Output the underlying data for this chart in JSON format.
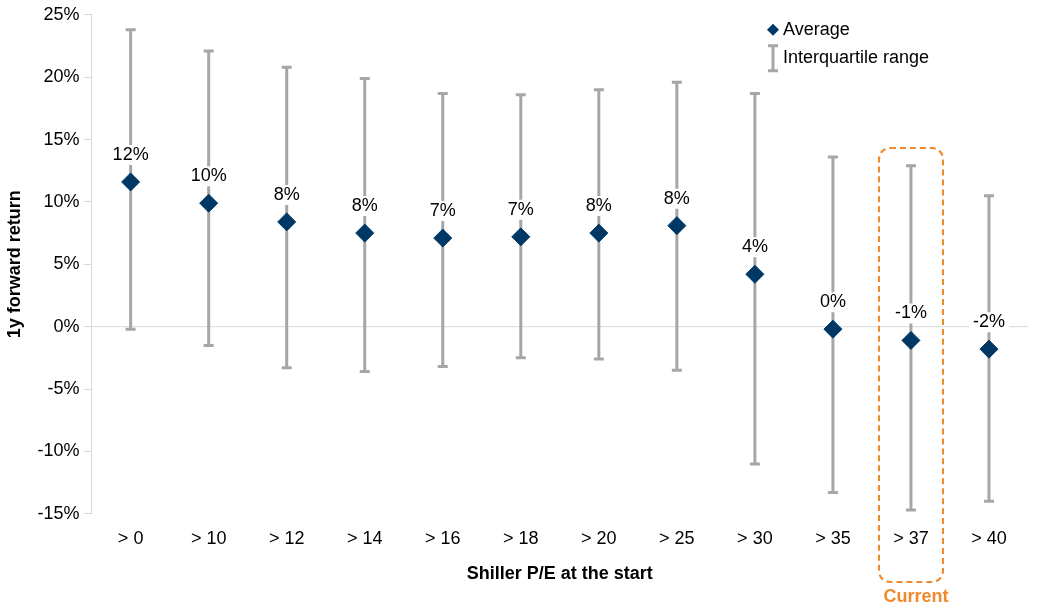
{
  "chart_data": {
    "type": "scatter",
    "xlabel": "Shiller P/E at the start",
    "ylabel": "1y forward return",
    "categories": [
      "> 0",
      "> 10",
      "> 12",
      "> 14",
      "> 16",
      "> 18",
      "> 20",
      "> 25",
      "> 30",
      "> 35",
      "> 37",
      "> 40"
    ],
    "series": [
      {
        "name": "Average",
        "color": "#003865",
        "values": [
          11.6,
          9.9,
          8.4,
          7.5,
          7.1,
          7.2,
          7.5,
          8.1,
          4.2,
          -0.2,
          -1.1,
          -1.8
        ],
        "value_labels": [
          "12%",
          "10%",
          "8%",
          "8%",
          "7%",
          "7%",
          "8%",
          "8%",
          "4%",
          "0%",
          "-1%",
          "-2%"
        ],
        "errors": [
          [
            -0.2,
            23.8
          ],
          [
            -1.5,
            22.1
          ],
          [
            -3.3,
            20.8
          ],
          [
            -3.6,
            19.9
          ],
          [
            -3.2,
            18.7
          ],
          [
            -2.5,
            18.6
          ],
          [
            -2.6,
            19.0
          ],
          [
            -3.5,
            19.6
          ],
          [
            -11.0,
            18.7
          ],
          [
            -13.3,
            13.6
          ],
          [
            -14.7,
            12.9
          ],
          [
            -14.0,
            10.5
          ]
        ]
      }
    ],
    "ylim": [
      -15,
      25
    ],
    "yticks": [
      {
        "value": -15,
        "label": "-15%"
      },
      {
        "value": -10,
        "label": "-10%"
      },
      {
        "value": -5,
        "label": "-5%"
      },
      {
        "value": 0,
        "label": "0%"
      },
      {
        "value": 5,
        "label": "5%"
      },
      {
        "value": 10,
        "label": "10%"
      },
      {
        "value": 15,
        "label": "15%"
      },
      {
        "value": 20,
        "label": "20%"
      },
      {
        "value": 25,
        "label": "25%"
      }
    ],
    "ref_lines": [
      {
        "axis": "y",
        "value": 0,
        "color": "#d9d9d9"
      }
    ],
    "annotations": [
      "Interquartile range",
      "Current"
    ],
    "grid": false,
    "legend": "top right",
    "marker": "diamond"
  }
}
